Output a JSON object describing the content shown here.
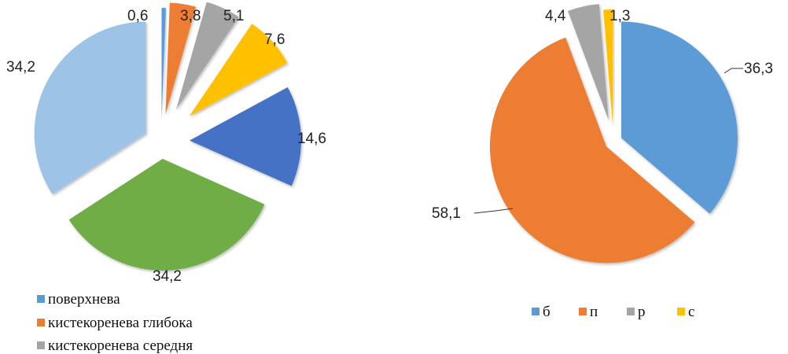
{
  "chart_data": [
    {
      "type": "pie",
      "title": "",
      "exploded": true,
      "slices": [
        {
          "label": "0,6",
          "value": 0.6,
          "color": "#5B9BD5"
        },
        {
          "label": "3,8",
          "value": 3.8,
          "color": "#ED7D31"
        },
        {
          "label": "5,1",
          "value": 5.1,
          "color": "#A5A5A5"
        },
        {
          "label": "7,6",
          "value": 7.6,
          "color": "#FFC000"
        },
        {
          "label": "14,6",
          "value": 14.6,
          "color": "#4472C4"
        },
        {
          "label": "34,2",
          "value": 34.2,
          "color": "#70AD47"
        },
        {
          "label": "34,2",
          "value": 34.2,
          "color": "#9DC3E6"
        }
      ],
      "legend": {
        "placement": "bottom-left",
        "entries": [
          {
            "name": "поверхнева",
            "color": "#5B9BD5"
          },
          {
            "name": "кистекоренева глибока",
            "color": "#ED7D31"
          },
          {
            "name": "кистекоренева середня",
            "color": "#A5A5A5"
          }
        ]
      }
    },
    {
      "type": "pie",
      "title": "",
      "exploded": true,
      "slices": [
        {
          "label": "36,3",
          "value": 36.3,
          "color": "#5B9BD5"
        },
        {
          "label": "58,1",
          "value": 58.1,
          "color": "#ED7D31"
        },
        {
          "label": "4,4",
          "value": 4.4,
          "color": "#A5A5A5"
        },
        {
          "label": "1,3",
          "value": 1.3,
          "color": "#FFC000"
        }
      ],
      "legend": {
        "placement": "bottom",
        "entries": [
          {
            "name": "б",
            "color": "#5B9BD5"
          },
          {
            "name": "п",
            "color": "#ED7D31"
          },
          {
            "name": "р",
            "color": "#A5A5A5"
          },
          {
            "name": "с",
            "color": "#FFC000"
          }
        ]
      }
    }
  ]
}
